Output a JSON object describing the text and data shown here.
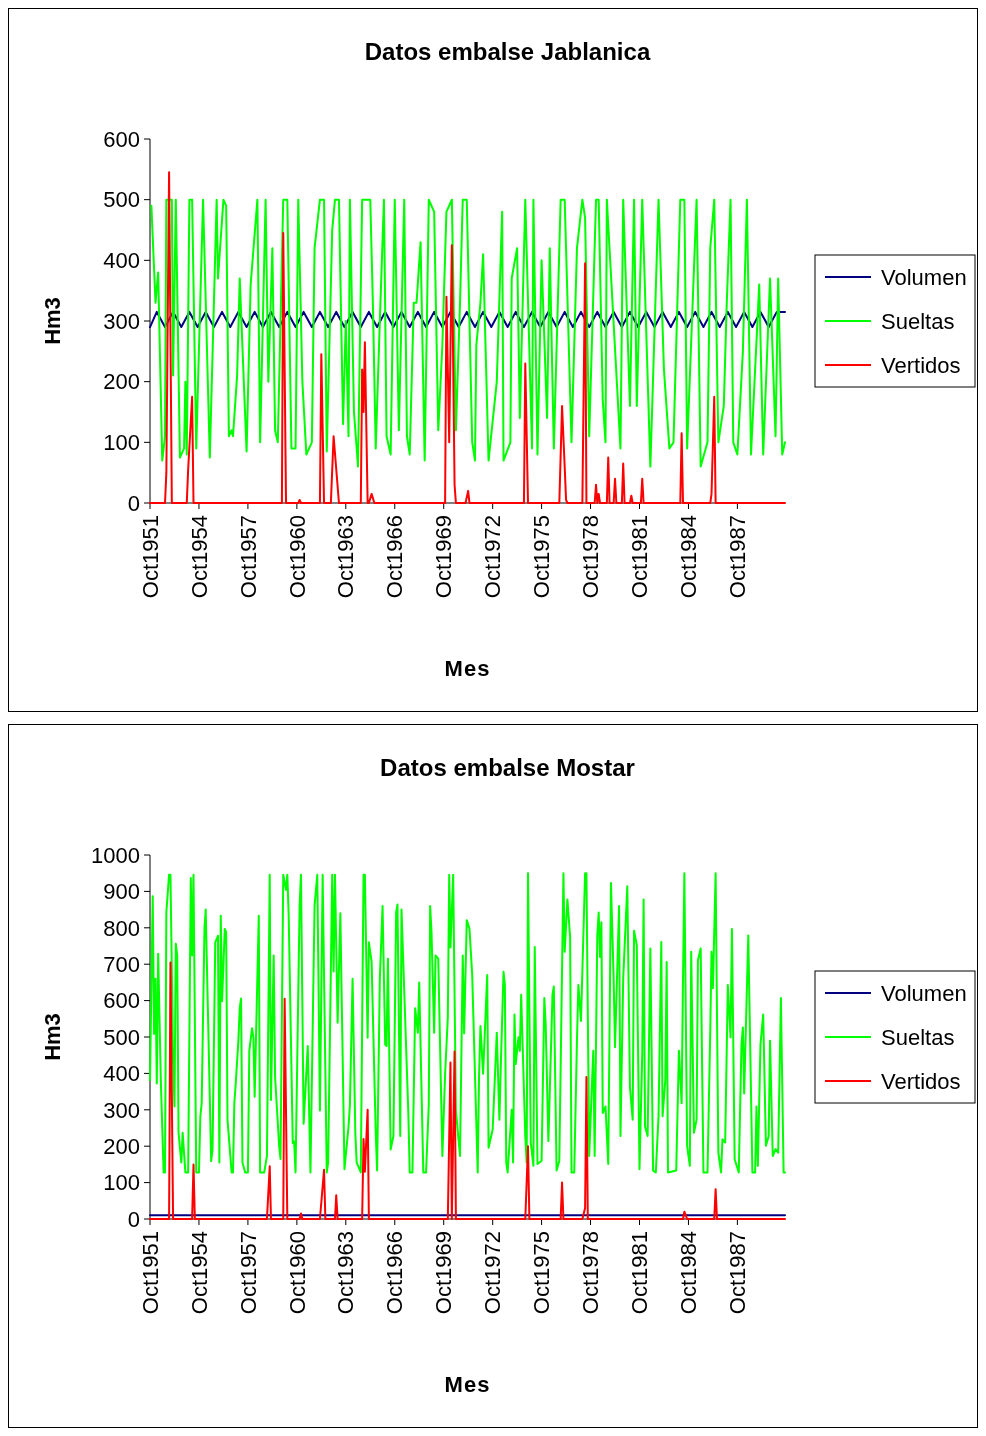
{
  "chart_data": [
    {
      "type": "line",
      "title": "Datos embalse Jablanica",
      "xlabel": "Mes",
      "ylabel": "Hm3",
      "xlim": [
        "1951-10",
        "1990-09"
      ],
      "ylim": [
        0,
        600
      ],
      "yticks": [
        0,
        100,
        200,
        300,
        400,
        500,
        600
      ],
      "legend": "right",
      "xticks": [
        {
          "value": "1951-10",
          "label": "Oct1951"
        },
        {
          "value": "1954-10",
          "label": "Oct1954"
        },
        {
          "value": "1957-10",
          "label": "Oct1957"
        },
        {
          "value": "1960-10",
          "label": "Oct1960"
        },
        {
          "value": "1963-10",
          "label": "Oct1963"
        },
        {
          "value": "1966-10",
          "label": "Oct1966"
        },
        {
          "value": "1969-10",
          "label": "Oct1969"
        },
        {
          "value": "1972-10",
          "label": "Oct1972"
        },
        {
          "value": "1975-10",
          "label": "Oct1975"
        },
        {
          "value": "1978-10",
          "label": "Oct1978"
        },
        {
          "value": "1981-10",
          "label": "Oct1981"
        },
        {
          "value": "1984-10",
          "label": "Oct1984"
        },
        {
          "value": "1987-10",
          "label": "Oct1987"
        }
      ],
      "series": [
        {
          "name": "Volumen",
          "color": "#000080",
          "x": [
            "1951-10",
            "1952-03",
            "1952-09",
            "1953-03",
            "1953-09",
            "1954-03",
            "1954-09",
            "1955-03",
            "1955-09",
            "1956-03",
            "1956-09",
            "1957-03",
            "1957-09",
            "1958-03",
            "1958-09",
            "1959-03",
            "1959-09",
            "1960-03",
            "1960-09",
            "1961-03",
            "1961-09",
            "1962-03",
            "1962-09",
            "1963-03",
            "1963-09",
            "1964-03",
            "1964-09",
            "1965-03",
            "1965-09",
            "1966-03",
            "1966-09",
            "1967-03",
            "1967-09",
            "1968-03",
            "1968-09",
            "1969-03",
            "1969-09",
            "1970-03",
            "1970-09",
            "1971-03",
            "1971-09",
            "1972-03",
            "1972-09",
            "1973-03",
            "1973-09",
            "1974-03",
            "1974-09",
            "1975-03",
            "1975-09",
            "1976-03",
            "1976-09",
            "1977-03",
            "1977-09",
            "1978-03",
            "1978-09",
            "1979-03",
            "1979-09",
            "1980-03",
            "1980-09",
            "1981-03",
            "1981-09",
            "1982-03",
            "1982-09",
            "1983-03",
            "1983-09",
            "1984-03",
            "1984-09",
            "1985-03",
            "1985-09",
            "1986-03",
            "1986-09",
            "1987-03",
            "1987-09",
            "1988-03",
            "1988-09",
            "1989-03",
            "1989-09",
            "1990-03",
            "1990-09"
          ],
          "values": [
            290,
            315,
            290,
            315,
            290,
            315,
            290,
            315,
            290,
            315,
            290,
            315,
            290,
            315,
            290,
            315,
            290,
            315,
            290,
            315,
            290,
            315,
            290,
            315,
            290,
            315,
            290,
            315,
            290,
            315,
            290,
            315,
            290,
            315,
            290,
            315,
            290,
            315,
            290,
            315,
            290,
            315,
            290,
            315,
            290,
            315,
            290,
            315,
            290,
            315,
            290,
            315,
            290,
            315,
            290,
            315,
            290,
            315,
            290,
            315,
            290,
            315,
            290,
            315,
            290,
            315,
            290,
            315,
            290,
            315,
            290,
            315,
            290,
            315,
            290,
            315,
            290,
            315,
            315
          ]
        },
        {
          "name": "Sueltas",
          "color": "#00ff00",
          "x": [
            "1951-11",
            "1952-02",
            "1952-04",
            "1952-07",
            "1952-09",
            "1952-10",
            "1953-02",
            "1953-03",
            "1953-05",
            "1953-08",
            "1953-11",
            "1953-12",
            "1954-01",
            "1954-03",
            "1954-05",
            "1954-08",
            "1955-01",
            "1955-06",
            "1955-11",
            "1955-12",
            "1956-04",
            "1956-06",
            "1956-08",
            "1956-10",
            "1956-11",
            "1957-02",
            "1957-04",
            "1957-07",
            "1957-09",
            "1957-12",
            "1958-05",
            "1958-07",
            "1958-11",
            "1959-01",
            "1959-04",
            "1959-06",
            "1959-08",
            "1959-12",
            "1960-03",
            "1960-06",
            "1960-09",
            "1960-11",
            "1961-02",
            "1961-05",
            "1961-09",
            "1961-11",
            "1962-03",
            "1962-06",
            "1962-08",
            "1962-12",
            "1963-02",
            "1963-05",
            "1963-08",
            "1963-10",
            "1963-12",
            "1964-01",
            "1964-04",
            "1964-07",
            "1964-10",
            "1964-12",
            "1965-04",
            "1965-06",
            "1965-08",
            "1965-11",
            "1966-02",
            "1966-04",
            "1966-07",
            "1966-10",
            "1967-01",
            "1967-05",
            "1967-07",
            "1967-09",
            "1967-12",
            "1968-02",
            "1968-05",
            "1968-08",
            "1968-11",
            "1969-03",
            "1969-06",
            "1969-09",
            "1969-12",
            "1970-04",
            "1970-07",
            "1970-10",
            "1970-12",
            "1971-03",
            "1971-07",
            "1971-09",
            "1971-10",
            "1972-01",
            "1972-03",
            "1972-07",
            "1973-01",
            "1973-05",
            "1973-06",
            "1973-11",
            "1973-12",
            "1974-04",
            "1974-06",
            "1974-10",
            "1975-03",
            "1975-04",
            "1975-07",
            "1975-10",
            "1976-02",
            "1976-04",
            "1976-07",
            "1976-12",
            "1977-03",
            "1977-08",
            "1977-12",
            "1978-04",
            "1978-06",
            "1978-09",
            "1979-02",
            "1979-04",
            "1979-07",
            "1979-09",
            "1979-10",
            "1980-08",
            "1980-10",
            "1981-03",
            "1981-06",
            "1981-08",
            "1981-12",
            "1982-06",
            "1982-12",
            "1983-04",
            "1983-08",
            "1983-11",
            "1984-04",
            "1984-07",
            "1984-09",
            "1985-04",
            "1985-07",
            "1985-12",
            "1986-02",
            "1986-05",
            "1986-08",
            "1986-12",
            "1987-02",
            "1987-05",
            "1987-07",
            "1987-10",
            "1988-02",
            "1988-05",
            "1988-08",
            "1988-11",
            "1989-02",
            "1989-05",
            "1989-10",
            "1990-02",
            "1990-04",
            "1990-07",
            "1990-09"
          ],
          "values": [
            490,
            330,
            380,
            70,
            110,
            500,
            500,
            210,
            500,
            75,
            90,
            200,
            80,
            500,
            500,
            90,
            500,
            75,
            500,
            370,
            500,
            490,
            110,
            120,
            110,
            210,
            370,
            200,
            85,
            360,
            500,
            100,
            500,
            200,
            420,
            120,
            100,
            500,
            500,
            90,
            90,
            500,
            200,
            80,
            100,
            420,
            500,
            500,
            85,
            450,
            500,
            500,
            130,
            300,
            110,
            500,
            150,
            60,
            500,
            500,
            500,
            320,
            90,
            300,
            500,
            110,
            80,
            500,
            120,
            500,
            110,
            80,
            330,
            330,
            430,
            70,
            500,
            480,
            120,
            260,
            480,
            500,
            120,
            330,
            500,
            500,
            100,
            70,
            260,
            330,
            410,
            70,
            200,
            480,
            70,
            100,
            370,
            420,
            140,
            500,
            90,
            500,
            80,
            400,
            140,
            420,
            90,
            500,
            500,
            100,
            420,
            500,
            470,
            110,
            500,
            500,
            170,
            100,
            500,
            90,
            500,
            160,
            500,
            160,
            500,
            60,
            500,
            220,
            90,
            100,
            500,
            500,
            90,
            500,
            60,
            100,
            420,
            500,
            100,
            160,
            320,
            500,
            100,
            80,
            250,
            500,
            80,
            220,
            360,
            80,
            370,
            110,
            370,
            80,
            100
          ]
        },
        {
          "name": "Vertidos",
          "color": "#ff0000",
          "x": [
            "1951-10",
            "1952-09",
            "1952-10",
            "1952-12",
            "1953-02",
            "1954-01",
            "1954-02",
            "1954-05",
            "1954-06",
            "1959-11",
            "1959-12",
            "1960-02",
            "1960-11",
            "1960-12",
            "1961-01",
            "1962-03",
            "1962-04",
            "1962-06",
            "1962-11",
            "1963-01",
            "1963-05",
            "1964-09",
            "1964-10",
            "1964-11",
            "1964-12",
            "1965-02",
            "1965-03",
            "1965-05",
            "1965-07",
            "1969-11",
            "1969-12",
            "1970-02",
            "1970-04",
            "1970-06",
            "1970-07",
            "1971-02",
            "1971-04",
            "1971-05",
            "1974-09",
            "1974-10",
            "1974-12",
            "1976-11",
            "1977-01",
            "1977-03",
            "1977-04",
            "1977-05",
            "1978-04",
            "1978-06",
            "1978-07",
            "1979-01",
            "1979-02",
            "1979-03",
            "1979-04",
            "1979-05",
            "1979-10",
            "1979-11",
            "1979-12",
            "1980-03",
            "1980-04",
            "1980-05",
            "1980-09",
            "1980-10",
            "1980-11",
            "1981-03",
            "1981-04",
            "1981-05",
            "1981-11",
            "1981-12",
            "1982-01",
            "1984-04",
            "1984-05",
            "1984-06",
            "1986-02",
            "1986-03",
            "1986-05",
            "1986-06",
            "1990-09"
          ],
          "values": [
            0,
            0,
            50,
            545,
            0,
            0,
            55,
            175,
            0,
            0,
            445,
            0,
            0,
            5,
            0,
            0,
            245,
            0,
            0,
            110,
            0,
            0,
            220,
            150,
            265,
            0,
            0,
            15,
            0,
            0,
            340,
            100,
            425,
            30,
            0,
            0,
            20,
            0,
            0,
            230,
            0,
            0,
            160,
            60,
            5,
            0,
            0,
            395,
            0,
            0,
            30,
            0,
            15,
            0,
            0,
            75,
            0,
            0,
            40,
            0,
            0,
            65,
            0,
            0,
            12,
            0,
            0,
            40,
            0,
            0,
            115,
            0,
            0,
            15,
            175,
            0,
            0
          ]
        }
      ]
    },
    {
      "type": "line",
      "title": "Datos embalse Mostar",
      "xlabel": "Mes",
      "ylabel": "Hm3",
      "xlim": [
        "1951-10",
        "1990-09"
      ],
      "ylim": [
        0,
        1000
      ],
      "yticks": [
        0,
        100,
        200,
        300,
        400,
        500,
        600,
        700,
        800,
        900,
        1000
      ],
      "legend": "right",
      "xticks": [
        {
          "value": "1951-10",
          "label": "Oct1951"
        },
        {
          "value": "1954-10",
          "label": "Oct1954"
        },
        {
          "value": "1957-10",
          "label": "Oct1957"
        },
        {
          "value": "1960-10",
          "label": "Oct1960"
        },
        {
          "value": "1963-10",
          "label": "Oct1963"
        },
        {
          "value": "1966-10",
          "label": "Oct1966"
        },
        {
          "value": "1969-10",
          "label": "Oct1969"
        },
        {
          "value": "1972-10",
          "label": "Oct1972"
        },
        {
          "value": "1975-10",
          "label": "Oct1975"
        },
        {
          "value": "1978-10",
          "label": "Oct1978"
        },
        {
          "value": "1981-10",
          "label": "Oct1981"
        },
        {
          "value": "1984-10",
          "label": "Oct1984"
        },
        {
          "value": "1987-10",
          "label": "Oct1987"
        }
      ],
      "series": [
        {
          "name": "Volumen",
          "color": "#000080",
          "x": [
            "1951-10",
            "1990-09"
          ],
          "values": [
            10,
            10
          ]
        },
        {
          "name": "Sueltas",
          "color": "#00ff00",
          "x": [
            "1951-10",
            "1951-12",
            "1952-01",
            "1952-02",
            "1952-03",
            "1952-04",
            "1952-06",
            "1952-08",
            "1952-09",
            "1952-10",
            "1952-12",
            "1953-01",
            "1953-03",
            "1953-04",
            "1953-05",
            "1953-06",
            "1953-07",
            "1953-09",
            "1953-10",
            "1953-12",
            "1954-02",
            "1954-04",
            "1954-05",
            "1954-06",
            "1954-08",
            "1954-10",
            "1954-11",
            "1954-12",
            "1955-02",
            "1955-03",
            "1955-05",
            "1955-07",
            "1955-08",
            "1955-10",
            "1955-12",
            "1956-01",
            "1956-02",
            "1956-03",
            "1956-05",
            "1956-06",
            "1956-07",
            "1956-10",
            "1956-11",
            "1956-12",
            "1957-01",
            "1957-03",
            "1957-04",
            "1957-05",
            "1957-06",
            "1957-08",
            "1957-10",
            "1957-11",
            "1958-01",
            "1958-02",
            "1958-03",
            "1958-06",
            "1958-07",
            "1958-10",
            "1958-12",
            "1959-02",
            "1959-03",
            "1959-05",
            "1959-06",
            "1959-09",
            "1959-10",
            "1959-12",
            "1960-02",
            "1960-03",
            "1960-04",
            "1960-07",
            "1960-08",
            "1960-09",
            "1960-12",
            "1961-01",
            "1961-03",
            "1961-06",
            "1961-08",
            "1961-11",
            "1962-01",
            "1962-03",
            "1962-05",
            "1962-08",
            "1962-09",
            "1962-12",
            "1963-01",
            "1963-02",
            "1963-04",
            "1963-06",
            "1963-09",
            "1963-12",
            "1964-01",
            "1964-03",
            "1964-05",
            "1964-06",
            "1964-09",
            "1964-11",
            "1964-12",
            "1965-02",
            "1965-03",
            "1965-05",
            "1965-08",
            "1965-09",
            "1965-11",
            "1966-01",
            "1966-03",
            "1966-04",
            "1966-05",
            "1966-07",
            "1966-09",
            "1966-11",
            "1966-12",
            "1967-02",
            "1967-03",
            "1967-08",
            "1967-09",
            "1967-11",
            "1968-01",
            "1968-03",
            "1968-04",
            "1968-07",
            "1968-09",
            "1968-11",
            "1968-12",
            "1969-01",
            "1969-03",
            "1969-04",
            "1969-06",
            "1969-09",
            "1969-11",
            "1970-01",
            "1970-02",
            "1970-03",
            "1970-05",
            "1970-07",
            "1970-10",
            "1970-12",
            "1971-01",
            "1971-03",
            "1971-05",
            "1971-07",
            "1971-11",
            "1971-12",
            "1972-01",
            "1972-03",
            "1972-06",
            "1972-07",
            "1972-10",
            "1973-01",
            "1973-03",
            "1973-04",
            "1973-06",
            "1973-07",
            "1973-08",
            "1973-09",
            "1973-12",
            "1974-01",
            "1974-02",
            "1974-03",
            "1974-05",
            "1974-06",
            "1974-07",
            "1974-10",
            "1974-11",
            "1974-12",
            "1975-02",
            "1975-04",
            "1975-05",
            "1975-07",
            "1975-10",
            "1975-12",
            "1976-01",
            "1976-03",
            "1976-06",
            "1976-07",
            "1976-09",
            "1976-11",
            "1977-02",
            "1977-03",
            "1977-05",
            "1977-07",
            "1977-08",
            "1977-10",
            "1977-12",
            "1978-01",
            "1978-03",
            "1978-06",
            "1978-07",
            "1978-09",
            "1978-12",
            "1979-01",
            "1979-03",
            "1979-04",
            "1979-05",
            "1979-06",
            "1979-07",
            "1979-09",
            "1979-11",
            "1980-01",
            "1980-03",
            "1980-04",
            "1980-07",
            "1980-08",
            "1980-10",
            "1981-01",
            "1981-03",
            "1981-05",
            "1981-06",
            "1981-08",
            "1981-10",
            "1981-12",
            "1982-01",
            "1982-02",
            "1982-04",
            "1982-06",
            "1982-08",
            "1982-10",
            "1982-12",
            "1983-02",
            "1983-03",
            "1983-05",
            "1983-06",
            "1983-07",
            "1984-01",
            "1984-03",
            "1984-05",
            "1984-06",
            "1984-07",
            "1984-09",
            "1984-11",
            "1984-12",
            "1985-02",
            "1985-04",
            "1985-05",
            "1985-07",
            "1985-09",
            "1985-12",
            "1986-02",
            "1986-03",
            "1986-04",
            "1986-06",
            "1986-08",
            "1986-10",
            "1986-11",
            "1987-01",
            "1987-03",
            "1987-05",
            "1987-06",
            "1987-08",
            "1987-11",
            "1988-01",
            "1988-02",
            "1988-03",
            "1988-06",
            "1988-09",
            "1988-11",
            "1988-12",
            "1989-01",
            "1989-03",
            "1989-05",
            "1989-07",
            "1989-09",
            "1989-10",
            "1989-12",
            "1990-02",
            "1990-04",
            "1990-06",
            "1990-08",
            "1990-09"
          ],
          "values": [
            381,
            887,
            508,
            660,
            372,
            729,
            372,
            128,
            128,
            842,
            946,
            946,
            435,
            309,
            756,
            724,
            237,
            155,
            237,
            128,
            128,
            937,
            724,
            946,
            128,
            128,
            282,
            318,
            797,
            850,
            508,
            159,
            191,
            760,
            778,
            155,
            833,
            598,
            797,
            788,
            273,
            128,
            128,
            318,
            372,
            489,
            579,
            606,
            155,
            128,
            128,
            462,
            524,
            498,
            336,
            833,
            128,
            128,
            173,
            946,
            327,
            724,
            390,
            199,
            165,
            946,
            904,
            946,
            833,
            209,
            213,
            128,
            860,
            946,
            262,
            475,
            128,
            860,
            946,
            298,
            946,
            128,
            155,
            946,
            680,
            946,
            539,
            840,
            137,
            253,
            314,
            660,
            237,
            155,
            128,
            946,
            946,
            498,
            760,
            707,
            237,
            133,
            660,
            860,
            479,
            475,
            715,
            191,
            228,
            842,
            864,
            228,
            850,
            291,
            128,
            128,
            579,
            512,
            650,
            128,
            128,
            314,
            860,
            788,
            512,
            724,
            715,
            173,
            397,
            554,
            946,
            746,
            946,
            298,
            173,
            724,
            510,
            821,
            797,
            670,
            128,
            390,
            530,
            399,
            670,
            196,
            246,
            512,
            273,
            422,
            679,
            643,
            155,
            128,
            300,
            155,
            562,
            426,
            499,
            462,
            616,
            228,
            155,
            950,
            210,
            146,
            747,
            151,
            160,
            607,
            535,
            214,
            616,
            639,
            133,
            160,
            950,
            734,
            878,
            774,
            128,
            128,
            490,
            643,
            544,
            950,
            950,
            173,
            462,
            173,
            779,
            842,
            720,
            815,
            291,
            309,
            151,
            923,
            661,
            472,
            860,
            228,
            661,
            914,
            363,
            273,
            792,
            752,
            137,
            453,
            878,
            255,
            228,
            743,
            133,
            128,
            282,
            761,
            282,
            381,
            706,
            128,
            133,
            462,
            318,
            661,
            950,
            201,
            146,
            734,
            237,
            273,
            711,
            743,
            128,
            128,
            517,
            734,
            634,
            950,
            182,
            128,
            219,
            210,
            643,
            499,
            797,
            164,
            128,
            480,
            526,
            345,
            779,
            128,
            128,
            309,
            146,
            480,
            562,
            201,
            228,
            490,
            173,
            192,
            182,
            607,
            128,
            128
          ]
        },
        {
          "name": "Vertidos",
          "color": "#ff0000",
          "x": [
            "1951-10",
            "1952-12",
            "1953-01",
            "1953-03",
            "1954-05",
            "1954-06",
            "1954-07",
            "1958-12",
            "1959-02",
            "1959-03",
            "1959-12",
            "1960-01",
            "1960-03",
            "1960-12",
            "1961-01",
            "1961-02",
            "1962-03",
            "1962-06",
            "1962-07",
            "1963-02",
            "1963-03",
            "1963-04",
            "1964-10",
            "1964-11",
            "1964-12",
            "1965-02",
            "1965-03",
            "1970-01",
            "1970-03",
            "1970-04",
            "1970-06",
            "1970-07",
            "1974-10",
            "1974-12",
            "1975-01",
            "1976-12",
            "1977-01",
            "1977-02",
            "1978-04",
            "1978-06",
            "1978-07",
            "1978-08",
            "1984-06",
            "1984-07",
            "1984-09",
            "1986-05",
            "1986-06",
            "1986-07",
            "1990-09"
          ],
          "values": [
            0,
            0,
            705,
            0,
            0,
            150,
            0,
            0,
            145,
            0,
            0,
            605,
            0,
            0,
            15,
            0,
            0,
            135,
            0,
            0,
            65,
            0,
            0,
            220,
            130,
            300,
            0,
            0,
            430,
            0,
            460,
            0,
            0,
            200,
            0,
            0,
            100,
            0,
            0,
            30,
            390,
            0,
            0,
            20,
            0,
            0,
            82,
            0,
            0
          ]
        }
      ]
    }
  ]
}
